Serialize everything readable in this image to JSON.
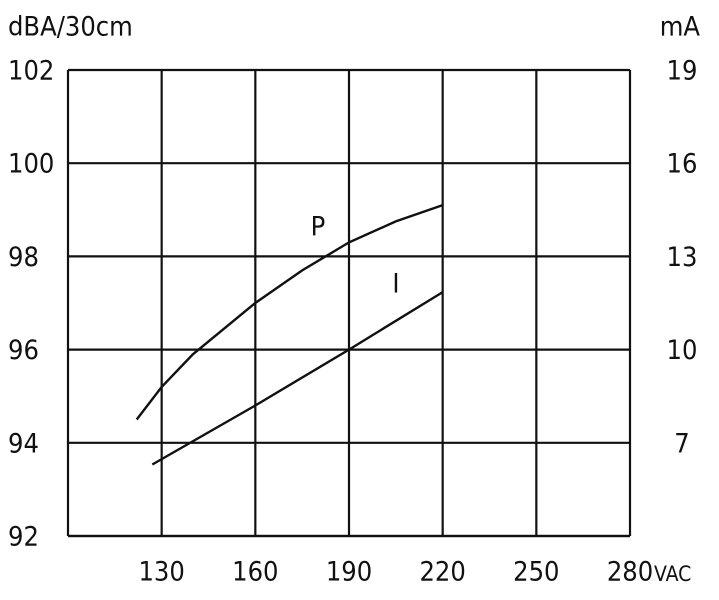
{
  "chart_data": {
    "type": "line",
    "y_label": "dBA/30cm",
    "y2_label": "mA",
    "x_unit": "VAC",
    "xlim": [
      100,
      280
    ],
    "xticks": [
      130,
      160,
      190,
      220,
      250,
      280
    ],
    "ylim": [
      92,
      102
    ],
    "yticks": [
      92,
      94,
      96,
      98,
      100,
      102
    ],
    "y2lim": [
      4,
      19
    ],
    "y2ticks": [
      7,
      10,
      13,
      16,
      19
    ],
    "grid": true,
    "series": [
      {
        "name": "P",
        "color": "#111111",
        "x": [
          122,
          130,
          140,
          160,
          175,
          190,
          205,
          220
        ],
        "values": [
          94.5,
          95.2,
          95.9,
          97.0,
          97.7,
          98.3,
          98.75,
          99.1
        ]
      },
      {
        "name": "I",
        "color": "#111111",
        "axis": "y2",
        "x": [
          127,
          160,
          190,
          220
        ],
        "values": [
          6.3,
          8.2,
          10.0,
          11.85
        ]
      }
    ]
  }
}
